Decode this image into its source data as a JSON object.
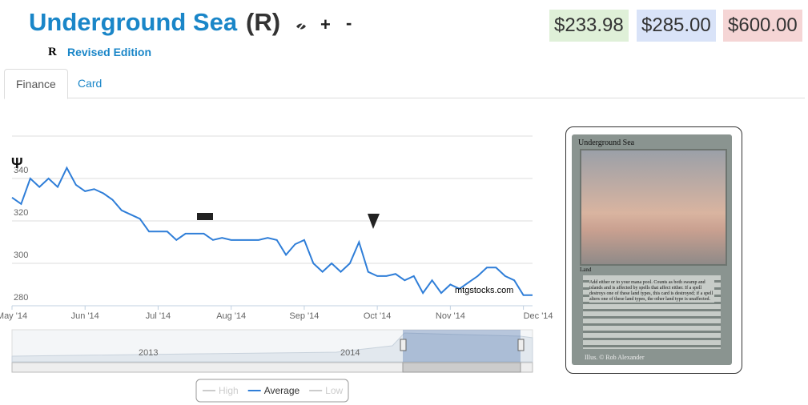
{
  "header": {
    "title": "Underground Sea",
    "rarity": "(R)",
    "plus": "+",
    "minus": "-",
    "set_symbol": "R",
    "set_name": "Revised Edition",
    "prices": [
      "$233.98",
      "$285.00",
      "$600.00"
    ]
  },
  "tabs": [
    "Finance",
    "Card"
  ],
  "chart_data": {
    "type": "line",
    "categories": [
      "May '14",
      null,
      null,
      null,
      null,
      null,
      null,
      null,
      "Jun '14",
      null,
      null,
      null,
      null,
      null,
      null,
      null,
      "Jul '14",
      null,
      null,
      null,
      null,
      null,
      null,
      null,
      "Aug '14",
      null,
      null,
      null,
      null,
      null,
      null,
      null,
      "Sep '14",
      null,
      null,
      null,
      null,
      null,
      null,
      null,
      "Oct '14",
      null,
      null,
      null,
      null,
      null,
      null,
      null,
      "Nov '14",
      null,
      null,
      null,
      null,
      null,
      null,
      null,
      "Dec '14",
      null
    ],
    "series": [
      {
        "name": "Average",
        "color": "#2f7ed8",
        "values": [
          331,
          328,
          340,
          336,
          340,
          336,
          345,
          337,
          334,
          335,
          333,
          330,
          325,
          323,
          321,
          315,
          315,
          315,
          311,
          314,
          314,
          314,
          311,
          312,
          311,
          311,
          311,
          311,
          312,
          311,
          304,
          309,
          311,
          300,
          296,
          300,
          296,
          300,
          310,
          296,
          294,
          294,
          295,
          292,
          294,
          286,
          292,
          286,
          290,
          288,
          291,
          294,
          298,
          298,
          294,
          292,
          285,
          285
        ]
      }
    ],
    "hidden_series": [
      "High",
      "Low"
    ],
    "ylim": [
      280,
      360
    ],
    "yticks": [
      280,
      300,
      320,
      340
    ],
    "grid": true,
    "navigator_labels": [
      "2013",
      "2014"
    ],
    "watermark": "mtgstocks.com"
  },
  "card": {
    "name": "Underground Sea",
    "type": "Land",
    "text": "Add either or to your mana pool. Counts as both swamp and islands and is affected by spells that affect either. If a spell destroys one of these land types, this card is destroyed; if a spell alters one of these land types, the other land type is unaffected.",
    "illustrator": "Illus. © Rob Alexander"
  }
}
